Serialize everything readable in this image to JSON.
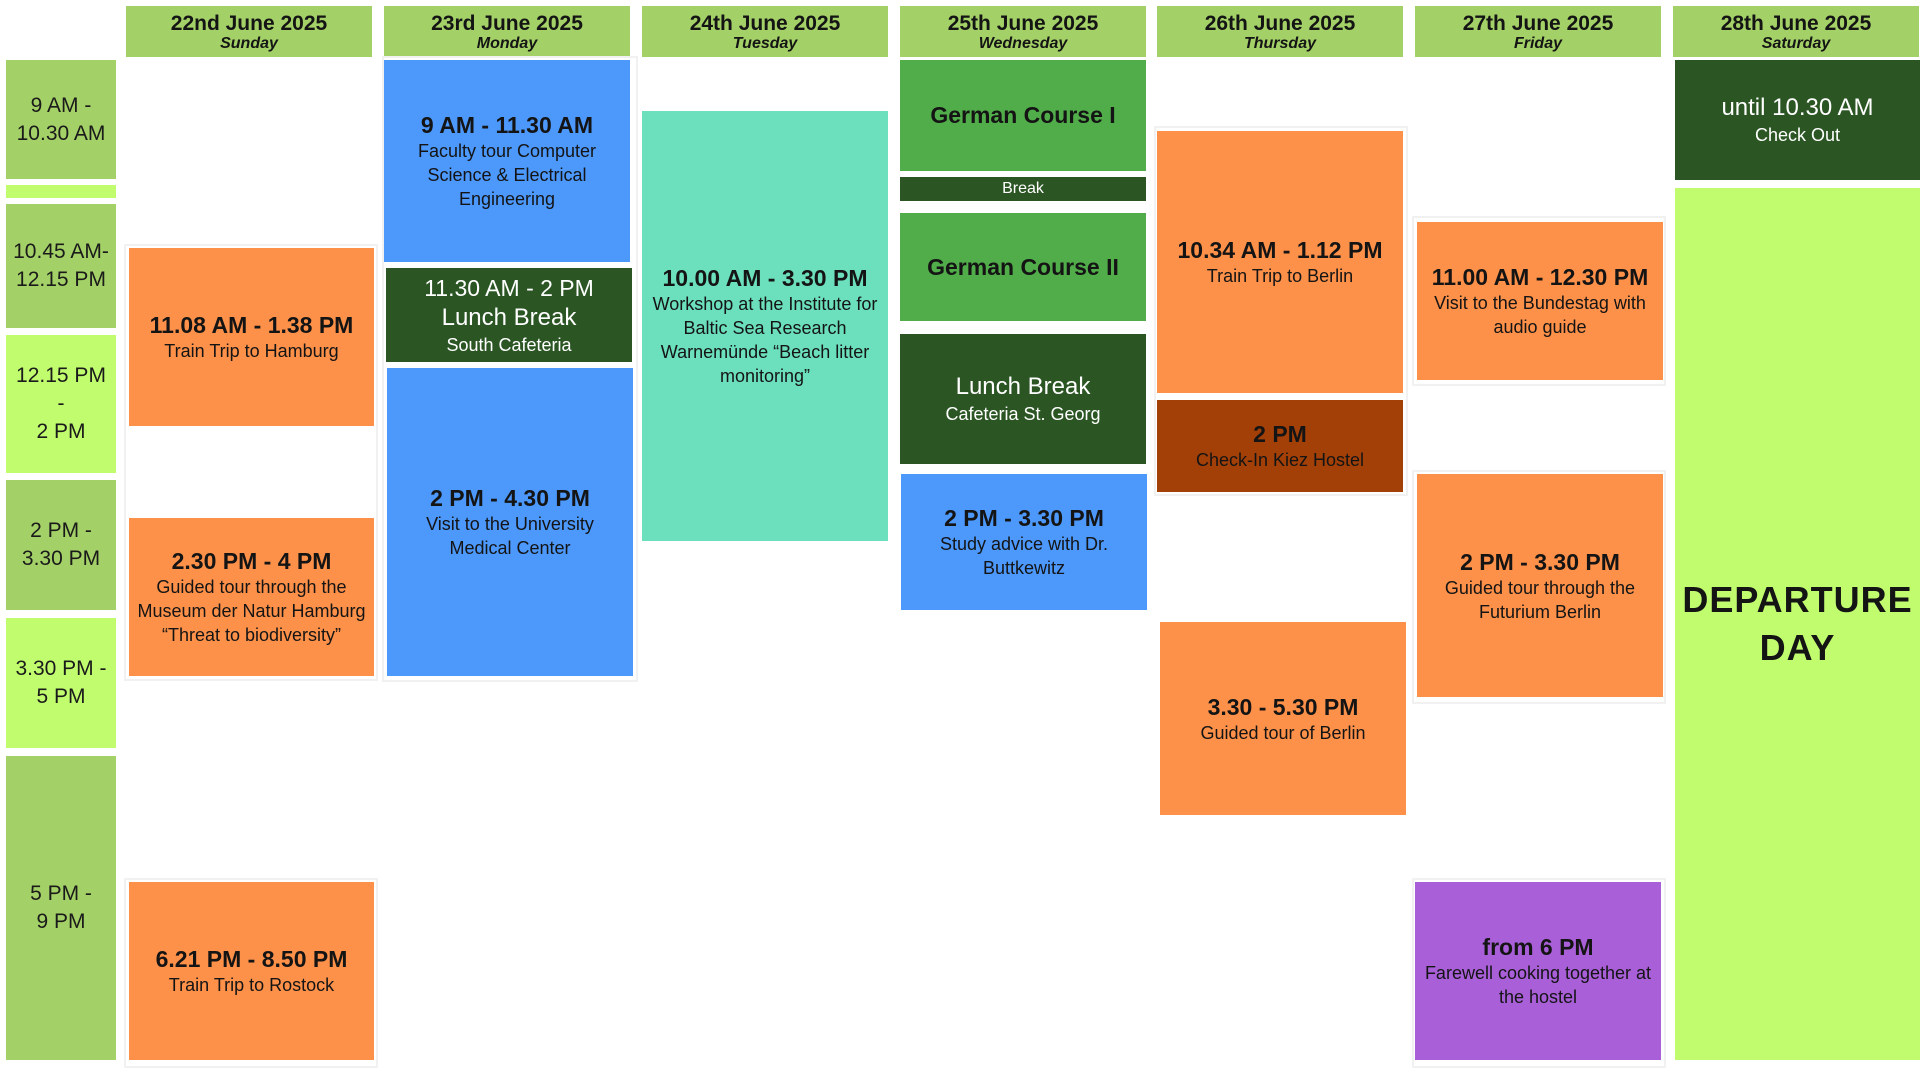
{
  "days": [
    {
      "date": "22nd June 2025",
      "weekday": "Sunday"
    },
    {
      "date": "23rd June 2025",
      "weekday": "Monday"
    },
    {
      "date": "24th June 2025",
      "weekday": "Tuesday"
    },
    {
      "date": "25th June 2025",
      "weekday": "Wednesday"
    },
    {
      "date": "26th June 2025",
      "weekday": "Thursday"
    },
    {
      "date": "27th June 2025",
      "weekday": "Friday"
    },
    {
      "date": "28th June 2025",
      "weekday": "Saturday"
    }
  ],
  "time_slots": [
    {
      "label": "9 AM -\n10.30 AM"
    },
    {
      "label": ""
    },
    {
      "label": "10.45 AM-\n12.15 PM"
    },
    {
      "label": "12.15 PM -\n2 PM"
    },
    {
      "label": "2 PM -\n3.30 PM"
    },
    {
      "label": "3.30 PM -\n5 PM"
    },
    {
      "label": "5 PM -\n9 PM"
    }
  ],
  "events": {
    "sunday": [
      {
        "time": "11.08 AM - 1.38 PM",
        "desc": "Train Trip to Hamburg"
      },
      {
        "time": "2.30 PM - 4 PM",
        "desc": "Guided tour through the Museum der Natur Hamburg “Threat to biodiversity”"
      },
      {
        "time": "6.21 PM - 8.50 PM",
        "desc": "Train Trip to Rostock"
      }
    ],
    "monday": {
      "faculty_tour": {
        "time": "9 AM - 11.30 AM",
        "desc": "Faculty tour Computer Science & Electrical Engineering"
      },
      "lunch": {
        "time": "11.30 AM - 2 PM",
        "title": "Lunch Break",
        "place": "South Cafeteria"
      },
      "medical": {
        "time": "2 PM - 4.30 PM",
        "desc": "Visit to the University Medical Center"
      }
    },
    "tuesday": {
      "workshop": {
        "time": "10.00 AM - 3.30 PM",
        "desc": "Workshop at the Institute for Baltic Sea Research Warnemünde “Beach litter monitoring”"
      }
    },
    "wednesday": {
      "course1": "German Course I",
      "break": "Break",
      "course2": "German Course II",
      "lunch": {
        "title": "Lunch Break",
        "place": "Cafeteria St. Georg"
      },
      "advice": {
        "time": "2 PM - 3.30 PM",
        "desc": "Study advice with Dr. Buttkewitz"
      }
    },
    "thursday": {
      "train": {
        "time": "10.34 AM - 1.12 PM",
        "desc": "Train Trip to Berlin"
      },
      "checkin": {
        "time": "2 PM",
        "desc": "Check-In Kiez Hostel"
      },
      "tour": {
        "time": "3.30 - 5.30 PM",
        "desc": "Guided tour of Berlin"
      }
    },
    "friday": {
      "bundestag": {
        "time": "11.00 AM - 12.30 PM",
        "desc": "Visit to the Bundestag with audio guide"
      },
      "futurium": {
        "time": "2 PM - 3.30 PM",
        "desc": "Guided tour through the Futurium Berlin"
      },
      "farewell": {
        "time": "from 6 PM",
        "desc": "Farewell cooking together at the hostel"
      }
    },
    "saturday": {
      "checkout": {
        "time": "until 10.30 AM",
        "desc": "Check Out"
      },
      "departure": "DEPARTURE DAY"
    }
  },
  "colors": {
    "header": "#a3d167",
    "orange": "#fd914a",
    "blue": "#4c98fb",
    "teal": "#6cdfbc",
    "green": "#51ac4a",
    "dark_green": "#2b5624",
    "brown": "#a24008",
    "purple": "#a95fd8",
    "lime": "#c1fc6f"
  }
}
